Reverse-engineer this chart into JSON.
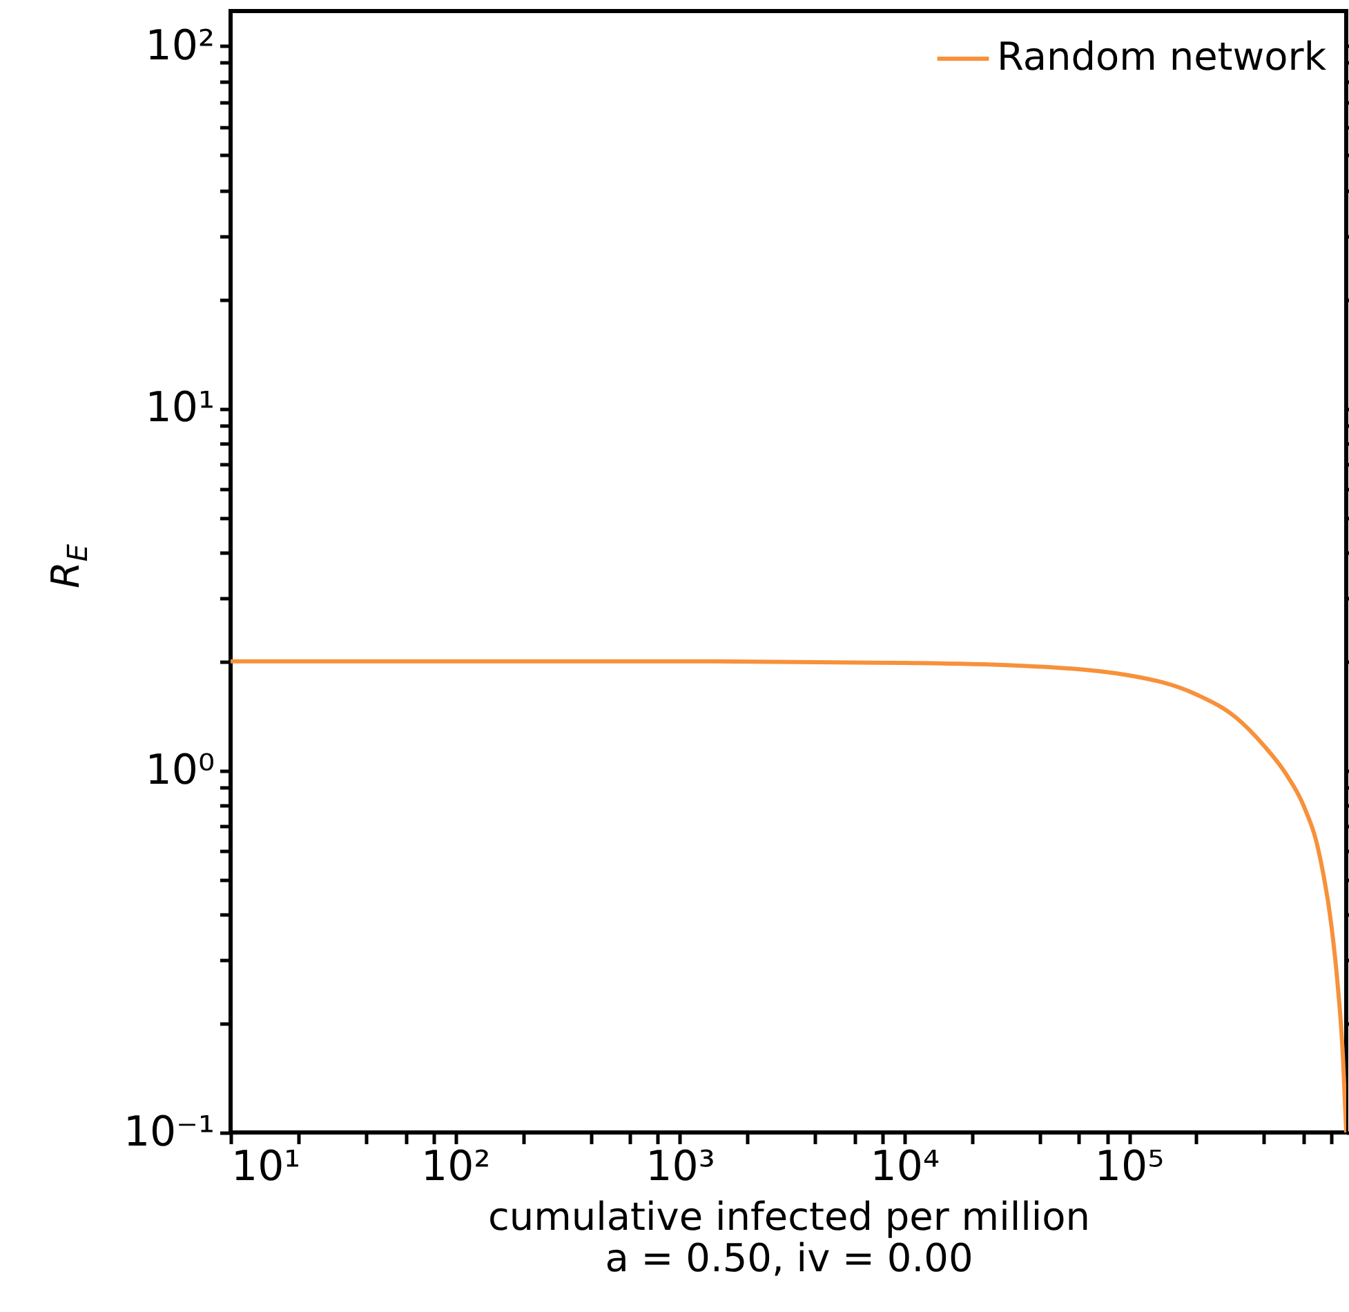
{
  "chart_data": {
    "type": "line",
    "xlabel": "cumulative infected per million",
    "ylabel": "R$_{E}$",
    "annotations": [
      "a = 0.50, iv = 0.00"
    ],
    "log": "xy",
    "xlim": [
      10,
      930000
    ],
    "ylim": [
      0.1,
      125
    ],
    "xticks": [
      {
        "value": 10,
        "label": "10¹"
      },
      {
        "value": 20,
        "label": null
      },
      {
        "value": 40,
        "label": null
      },
      {
        "value": 60,
        "label": null
      },
      {
        "value": 80,
        "label": null
      },
      {
        "value": 100,
        "label": "10²"
      },
      {
        "value": 200,
        "label": null
      },
      {
        "value": 400,
        "label": null
      },
      {
        "value": 600,
        "label": null
      },
      {
        "value": 800,
        "label": null
      },
      {
        "value": 1000,
        "label": "10³"
      },
      {
        "value": 2000,
        "label": null
      },
      {
        "value": 4000,
        "label": null
      },
      {
        "value": 6000,
        "label": null
      },
      {
        "value": 8000,
        "label": null
      },
      {
        "value": 10000,
        "label": "10⁴"
      },
      {
        "value": 20000,
        "label": null
      },
      {
        "value": 40000,
        "label": null
      },
      {
        "value": 60000,
        "label": null
      },
      {
        "value": 80000,
        "label": null
      },
      {
        "value": 100000,
        "label": "10⁵"
      },
      {
        "value": 200000,
        "label": null
      },
      {
        "value": 400000,
        "label": null
      },
      {
        "value": 600000,
        "label": null
      },
      {
        "value": 800000,
        "label": null
      }
    ],
    "yticks": [
      {
        "value": 0.1,
        "label": "10⁻¹"
      },
      {
        "value": 0.2,
        "label": null
      },
      {
        "value": 0.3,
        "label": null
      },
      {
        "value": 0.4,
        "label": null
      },
      {
        "value": 0.5,
        "label": null
      },
      {
        "value": 0.6,
        "label": null
      },
      {
        "value": 0.7,
        "label": null
      },
      {
        "value": 0.8,
        "label": null
      },
      {
        "value": 0.9,
        "label": null
      },
      {
        "value": 1,
        "label": "10⁰"
      },
      {
        "value": 2,
        "label": null
      },
      {
        "value": 3,
        "label": null
      },
      {
        "value": 4,
        "label": null
      },
      {
        "value": 5,
        "label": null
      },
      {
        "value": 6,
        "label": null
      },
      {
        "value": 7,
        "label": null
      },
      {
        "value": 8,
        "label": null
      },
      {
        "value": 9,
        "label": null
      },
      {
        "value": 10,
        "label": "10¹"
      },
      {
        "value": 20,
        "label": null
      },
      {
        "value": 30,
        "label": null
      },
      {
        "value": 40,
        "label": null
      },
      {
        "value": 50,
        "label": null
      },
      {
        "value": 60,
        "label": null
      },
      {
        "value": 70,
        "label": null
      },
      {
        "value": 80,
        "label": null
      },
      {
        "value": 90,
        "label": null
      },
      {
        "value": 100,
        "label": "10²"
      }
    ],
    "grid": false,
    "legend": "top right",
    "marker": "none",
    "line_style": "solid",
    "series": [
      {
        "name": "Random network",
        "color": "#f7913a",
        "x": [
          10,
          100,
          1000,
          10000,
          30000,
          100000,
          200000,
          300000,
          400000,
          500000,
          600000,
          700000,
          800000,
          850000,
          900000,
          930000
        ],
        "values": [
          2.0,
          2.0,
          2.0,
          1.98,
          1.95,
          1.83,
          1.62,
          1.4,
          1.17,
          0.98,
          0.8,
          0.6,
          0.37,
          0.26,
          0.16,
          0.1
        ]
      }
    ]
  }
}
